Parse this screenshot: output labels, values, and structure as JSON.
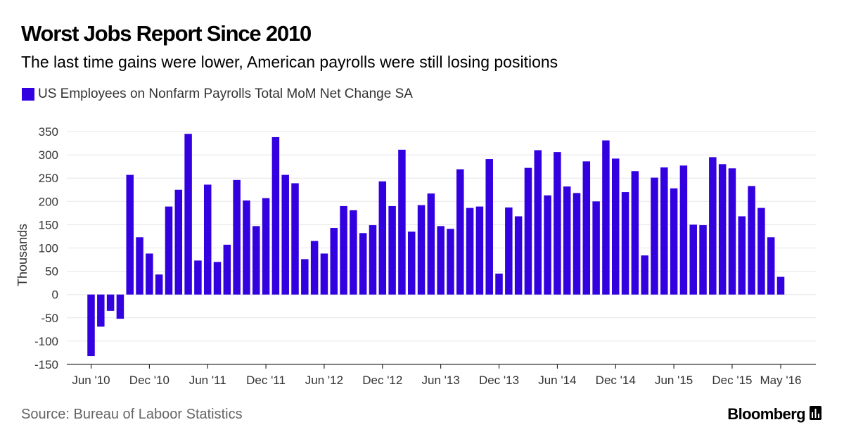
{
  "header": {
    "title": "Worst Jobs Report Since 2010",
    "subtitle": "The last time gains were lower, American payrolls were still losing positions"
  },
  "footer": {
    "source": "Source: Bureau of Laboor Statistics",
    "brand": "Bloomberg",
    "brand_icon": "bloomberg-terminal-icon"
  },
  "colors": {
    "bar": "#3300e0",
    "grid": "#e6e6e6",
    "axis": "#000000",
    "text": "#333333"
  },
  "chart_data": {
    "type": "bar",
    "title": "Worst Jobs Report Since 2010",
    "ylabel": "Thousands",
    "xlabel": "",
    "ylim": [
      -150,
      350
    ],
    "yticks": [
      350,
      300,
      250,
      200,
      150,
      100,
      50,
      0,
      -50,
      -100,
      -150
    ],
    "grid": true,
    "legend_position": "top-left",
    "series": [
      {
        "name": "US Employees on Nonfarm Payrolls Total MoM Net Change SA",
        "color": "#3300e0",
        "values": [
          -132,
          -69,
          -35,
          -52,
          257,
          123,
          88,
          43,
          189,
          225,
          345,
          73,
          236,
          70,
          107,
          246,
          202,
          147,
          207,
          338,
          257,
          239,
          76,
          115,
          88,
          143,
          190,
          181,
          132,
          149,
          243,
          190,
          311,
          135,
          192,
          217,
          147,
          141,
          269,
          186,
          189,
          291,
          45,
          187,
          168,
          272,
          310,
          213,
          306,
          232,
          218,
          286,
          200,
          331,
          292,
          220,
          265,
          84,
          251,
          273,
          228,
          277,
          150,
          149,
          295,
          280,
          271,
          168,
          233,
          186,
          123,
          38
        ]
      }
    ],
    "categories": [
      "Jun 2010",
      "Jul 2010",
      "Aug 2010",
      "Sep 2010",
      "Oct 2010",
      "Nov 2010",
      "Dec 2010",
      "Jan 2011",
      "Feb 2011",
      "Mar 2011",
      "Apr 2011",
      "May 2011",
      "Jun 2011",
      "Jul 2011",
      "Aug 2011",
      "Sep 2011",
      "Oct 2011",
      "Nov 2011",
      "Dec 2011",
      "Jan 2012",
      "Feb 2012",
      "Mar 2012",
      "Apr 2012",
      "May 2012",
      "Jun 2012",
      "Jul 2012",
      "Aug 2012",
      "Sep 2012",
      "Oct 2012",
      "Nov 2012",
      "Dec 2012",
      "Jan 2013",
      "Feb 2013",
      "Mar 2013",
      "Apr 2013",
      "May 2013",
      "Jun 2013",
      "Jul 2013",
      "Aug 2013",
      "Sep 2013",
      "Oct 2013",
      "Nov 2013",
      "Dec 2013",
      "Jan 2014",
      "Feb 2014",
      "Mar 2014",
      "Apr 2014",
      "May 2014",
      "Jun 2014",
      "Jul 2014",
      "Aug 2014",
      "Sep 2014",
      "Oct 2014",
      "Nov 2014",
      "Dec 2014",
      "Jan 2015",
      "Feb 2015",
      "Mar 2015",
      "Apr 2015",
      "May 2015",
      "Jun 2015",
      "Jul 2015",
      "Aug 2015",
      "Sep 2015",
      "Oct 2015",
      "Nov 2015",
      "Dec 2015",
      "Jan 2016",
      "Feb 2016",
      "Mar 2016",
      "Apr 2016",
      "May 2016"
    ],
    "xtick_labels": [
      {
        "index": 0,
        "label": "Jun '10"
      },
      {
        "index": 6,
        "label": "Dec '10"
      },
      {
        "index": 12,
        "label": "Jun '11"
      },
      {
        "index": 18,
        "label": "Dec '11"
      },
      {
        "index": 24,
        "label": "Jun '12"
      },
      {
        "index": 30,
        "label": "Dec '12"
      },
      {
        "index": 36,
        "label": "Jun '13"
      },
      {
        "index": 42,
        "label": "Dec '13"
      },
      {
        "index": 48,
        "label": "Jun '14"
      },
      {
        "index": 54,
        "label": "Dec '14"
      },
      {
        "index": 60,
        "label": "Jun '15"
      },
      {
        "index": 66,
        "label": "Dec '15"
      },
      {
        "index": 71,
        "label": "May '16"
      }
    ]
  }
}
